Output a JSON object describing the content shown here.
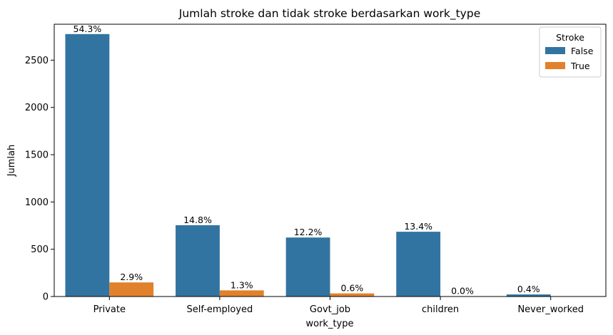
{
  "chart_data": {
    "type": "bar",
    "title": "Jumlah stroke dan tidak stroke berdasarkan work_type",
    "xlabel": "work_type",
    "ylabel": "Jumlah",
    "categories": [
      "Private",
      "Self-employed",
      "Govt_job",
      "children",
      "Never_worked"
    ],
    "ylim": [
      0,
      2880
    ],
    "yticks": [
      0,
      500,
      1000,
      1500,
      2000,
      2500
    ],
    "grid": false,
    "legend": {
      "title": "Stroke",
      "position": "top-right"
    },
    "series": [
      {
        "name": "False",
        "color": "#3274a1",
        "values": [
          2776,
          754,
          624,
          685,
          22
        ],
        "labels": [
          "54.3%",
          "14.8%",
          "12.2%",
          "13.4%",
          "0.4%"
        ]
      },
      {
        "name": "True",
        "color": "#e1812c",
        "values": [
          149,
          65,
          33,
          2,
          0
        ],
        "labels": [
          "2.9%",
          "1.3%",
          "0.6%",
          "0.0%",
          ""
        ]
      }
    ]
  }
}
